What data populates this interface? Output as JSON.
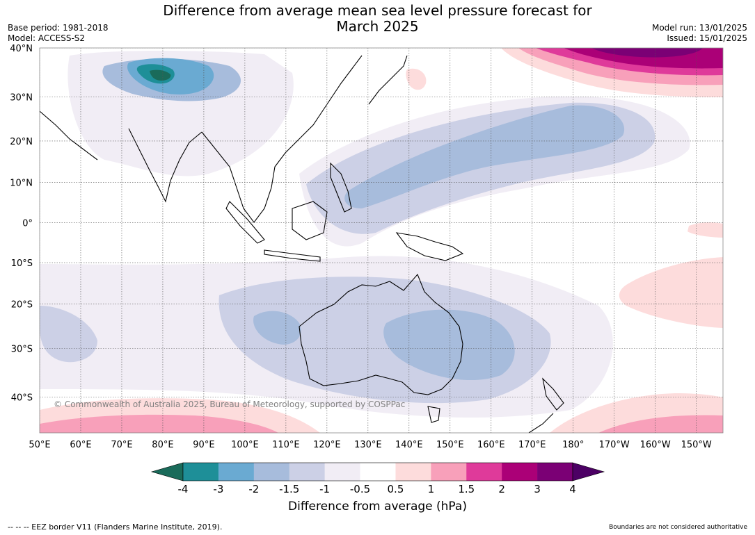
{
  "title_line1": "Difference from average mean sea level pressure forecast for",
  "title_line2": "March 2025",
  "meta_left": [
    "Base period: 1981-2018",
    "Model: ACCESS-S2"
  ],
  "meta_right": [
    "Model run: 13/01/2025",
    "Issued: 15/01/2025"
  ],
  "copyright": "© Commonwealth of Australia 2025, Bureau of Meteorology, supported by COSPPac",
  "lat_labels": [
    {
      "lat": 40,
      "label": "40°N"
    },
    {
      "lat": 30,
      "label": "30°N"
    },
    {
      "lat": 20,
      "label": "20°N"
    },
    {
      "lat": 10,
      "label": "10°N"
    },
    {
      "lat": 0,
      "label": "0°"
    },
    {
      "lat": -10,
      "label": "10°S"
    },
    {
      "lat": -20,
      "label": "20°S"
    },
    {
      "lat": -30,
      "label": "30°S"
    },
    {
      "lat": -40,
      "label": "40°S"
    }
  ],
  "lon_labels": [
    {
      "lon": 50,
      "label": "50°E"
    },
    {
      "lon": 60,
      "label": "60°E"
    },
    {
      "lon": 70,
      "label": "70°E"
    },
    {
      "lon": 80,
      "label": "80°E"
    },
    {
      "lon": 90,
      "label": "90°E"
    },
    {
      "lon": 100,
      "label": "100°E"
    },
    {
      "lon": 110,
      "label": "110°E"
    },
    {
      "lon": 120,
      "label": "120°E"
    },
    {
      "lon": 130,
      "label": "130°E"
    },
    {
      "lon": 140,
      "label": "140°E"
    },
    {
      "lon": 150,
      "label": "150°E"
    },
    {
      "lon": 160,
      "label": "160°E"
    },
    {
      "lon": 170,
      "label": "170°E"
    },
    {
      "lon": 180,
      "label": "180°"
    },
    {
      "lon": 190,
      "label": "170°W"
    },
    {
      "lon": 200,
      "label": "160°W"
    },
    {
      "lon": 210,
      "label": "150°W"
    }
  ],
  "colorbar": {
    "label": "Difference from average (hPa)",
    "ticks": [
      "-4",
      "-3",
      "-2",
      "-1.5",
      "-1",
      "-0.5",
      "0.5",
      "1",
      "1.5",
      "2",
      "3",
      "4"
    ],
    "colors": [
      "#1a6b5a",
      "#1e8f98",
      "#6aaad2",
      "#a7bcdc",
      "#ccd0e6",
      "#f1edf5",
      "#ffffff",
      "#fddcdc",
      "#f8a0ba",
      "#df3a9a",
      "#ab0077",
      "#7b0075",
      "#4c0064"
    ]
  },
  "footer_left": "--  --  -- EEZ border V11 (Flanders Marine Institute, 2019).",
  "footer_right": "Boundaries are not considered authoritative"
}
